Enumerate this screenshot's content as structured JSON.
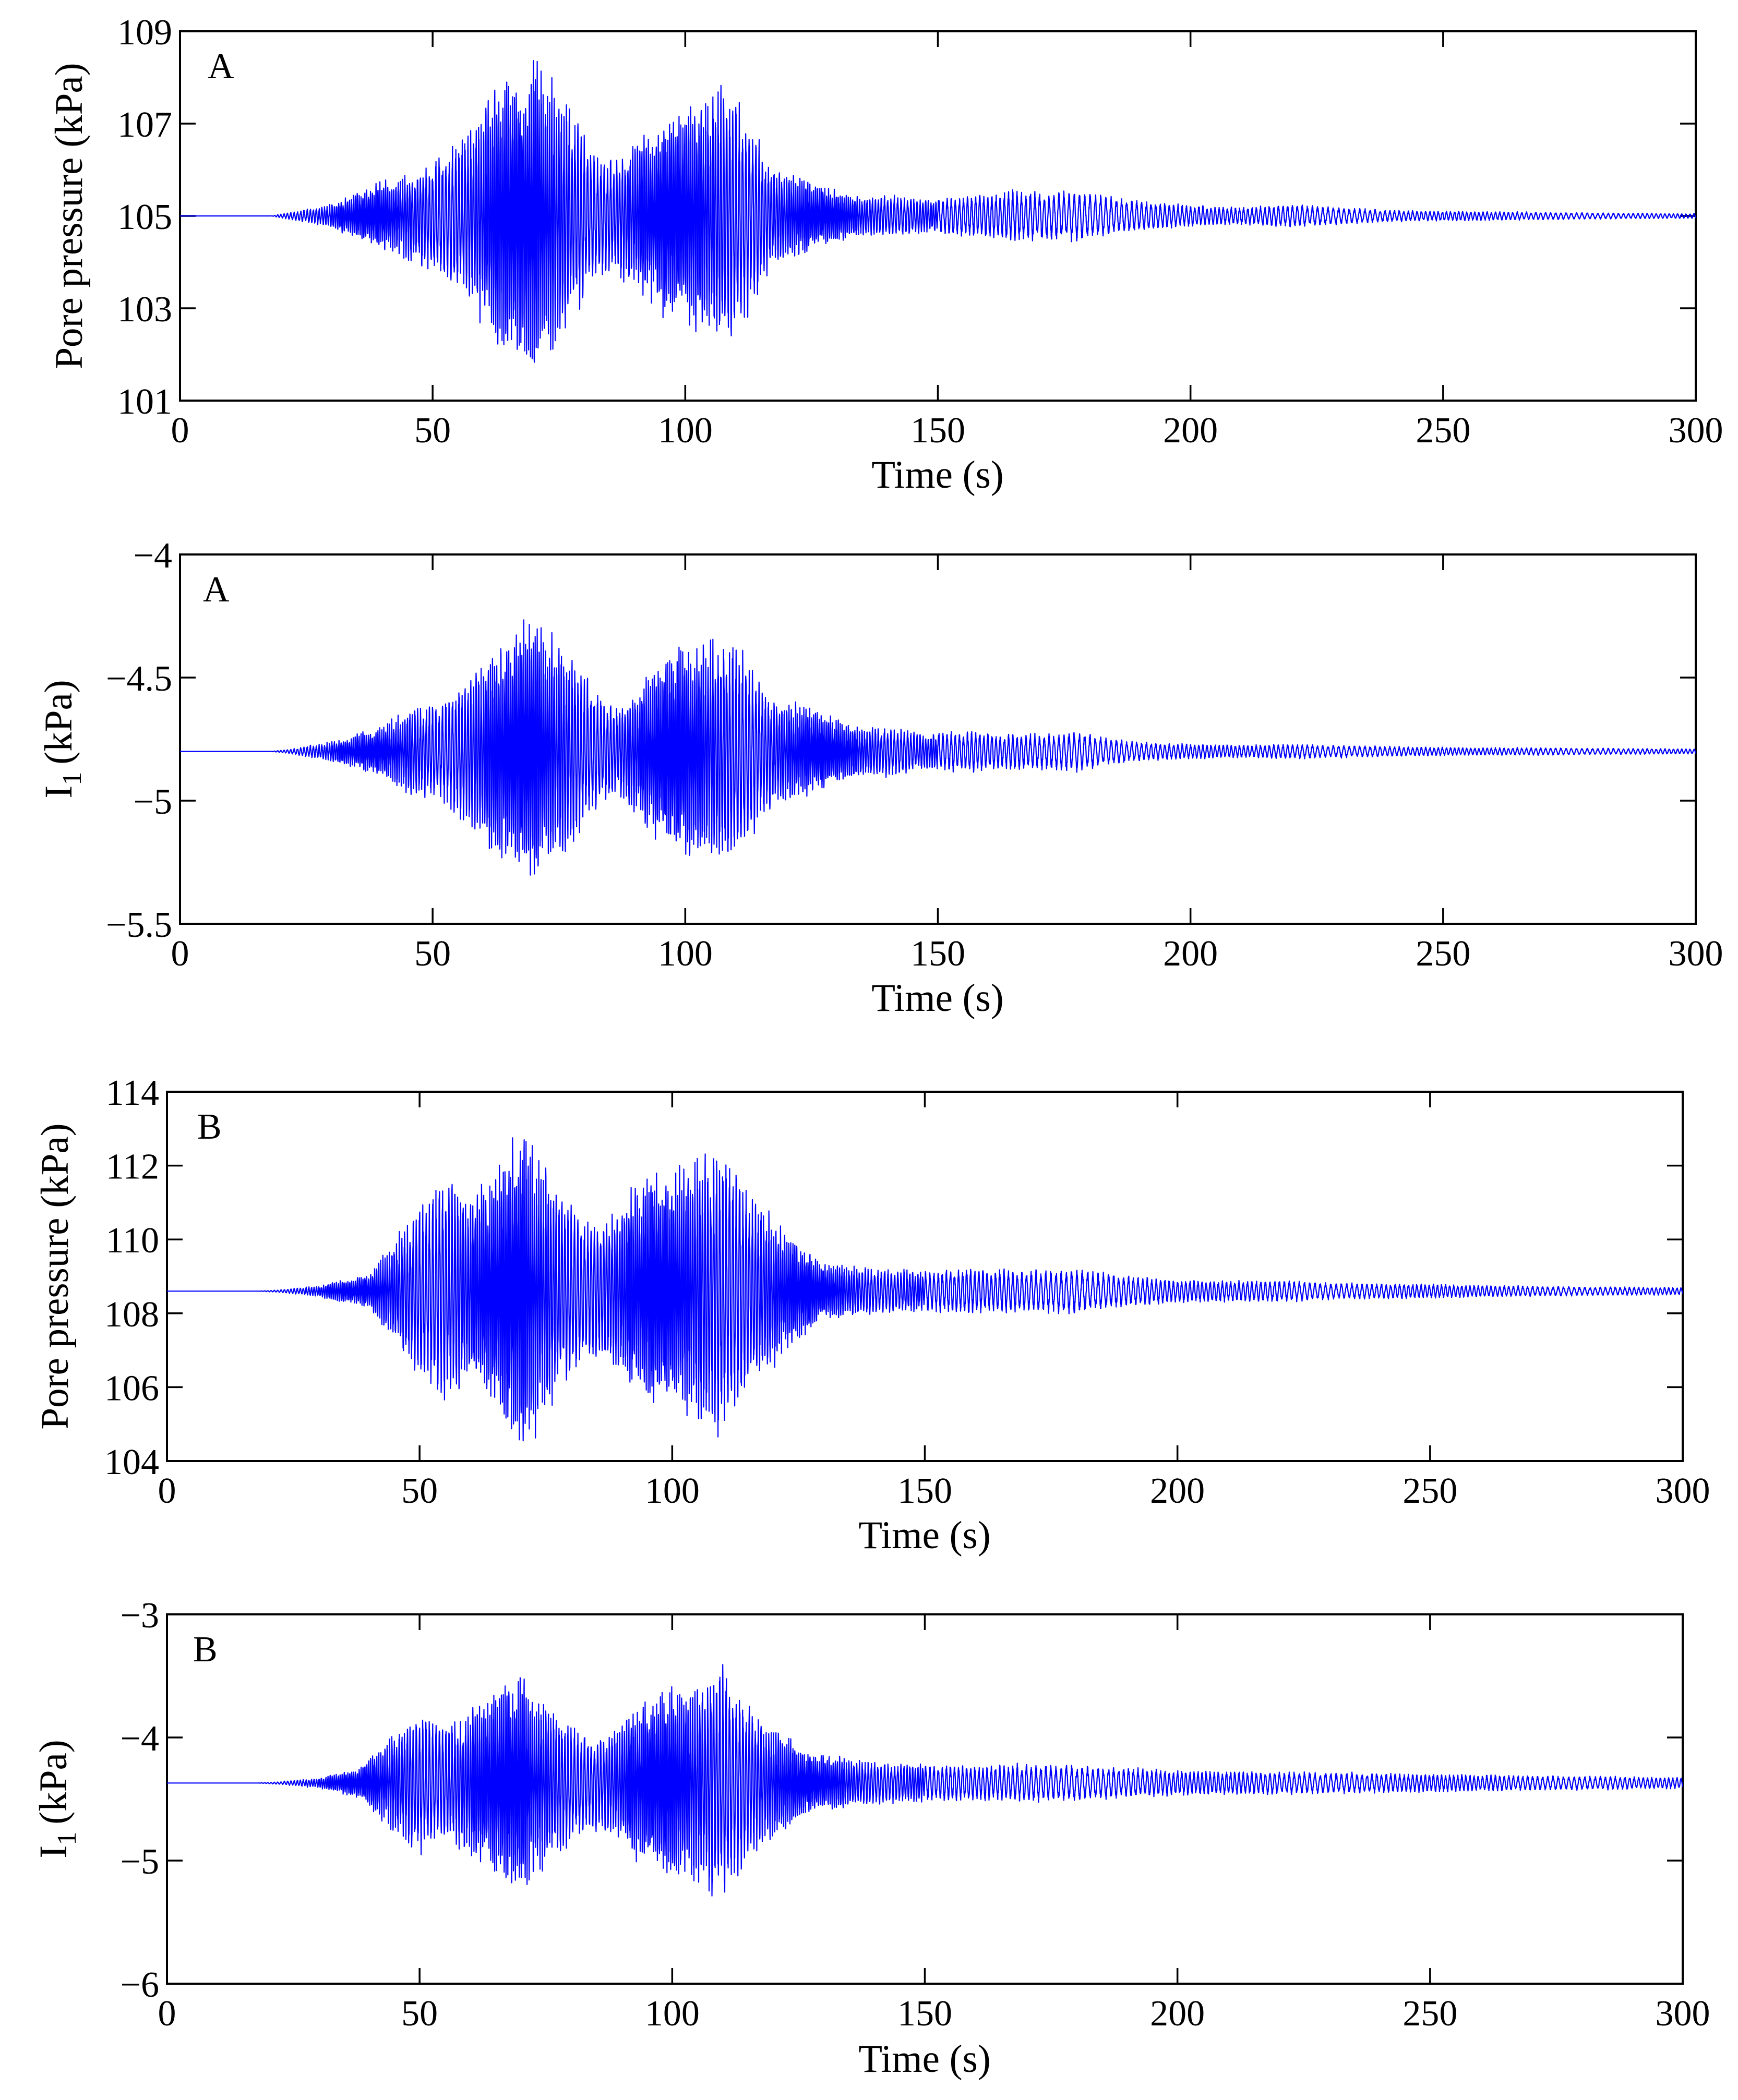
{
  "colors": {
    "trace": "#0000ff",
    "panel_letter": "#ff0000"
  },
  "chart_data": [
    {
      "type": "line",
      "panel_label": "A",
      "xlabel": "Time (s)",
      "ylabel": "Pore pressure (kPa)",
      "xlim": [
        0,
        300
      ],
      "ylim": [
        101,
        109
      ],
      "x_ticks": [
        "0",
        "50",
        "100",
        "150",
        "200",
        "250",
        "300"
      ],
      "y_ticks": [
        "101",
        "103",
        "105",
        "107",
        "109"
      ],
      "baseline": 105,
      "series": [
        {
          "name": "Pore pressure A",
          "seed": 11,
          "envelope": [
            [
              0,
              0
            ],
            [
              18,
              0
            ],
            [
              22,
              0.08
            ],
            [
              30,
              0.25
            ],
            [
              40,
              0.75
            ],
            [
              45,
              0.9
            ],
            [
              52,
              1.3
            ],
            [
              58,
              2.0
            ],
            [
              63,
              2.8
            ],
            [
              68,
              3.2
            ],
            [
              70,
              3.4
            ],
            [
              73,
              3.0
            ],
            [
              78,
              2.2
            ],
            [
              82,
              1.3
            ],
            [
              86,
              1.2
            ],
            [
              90,
              1.6
            ],
            [
              95,
              2.0
            ],
            [
              100,
              2.3
            ],
            [
              105,
              2.7
            ],
            [
              108,
              2.8
            ],
            [
              112,
              2.2
            ],
            [
              117,
              1.1
            ],
            [
              122,
              0.9
            ],
            [
              128,
              0.6
            ],
            [
              135,
              0.4
            ],
            [
              142,
              0.45
            ],
            [
              148,
              0.35
            ],
            [
              152,
              0.4
            ],
            [
              158,
              0.45
            ],
            [
              165,
              0.55
            ],
            [
              170,
              0.5
            ],
            [
              178,
              0.55
            ],
            [
              185,
              0.4
            ],
            [
              192,
              0.3
            ],
            [
              200,
              0.22
            ],
            [
              210,
              0.18
            ],
            [
              220,
              0.25
            ],
            [
              230,
              0.18
            ],
            [
              240,
              0.12
            ],
            [
              255,
              0.1
            ],
            [
              270,
              0.08
            ],
            [
              285,
              0.06
            ],
            [
              300,
              0.05
            ]
          ]
        }
      ]
    },
    {
      "type": "line",
      "panel_label": "A",
      "xlabel": "Time (s)",
      "ylabel_main": "I",
      "ylabel_sub": "1",
      "ylabel_unit": "(kPa)",
      "xlim": [
        0,
        300
      ],
      "ylim": [
        -5.5,
        -4
      ],
      "x_ticks": [
        "0",
        "50",
        "100",
        "150",
        "200",
        "250",
        "300"
      ],
      "y_ticks": [
        "−5.5",
        "−5",
        "−4.5",
        "−4"
      ],
      "y_tick_values": [
        -5.5,
        -5,
        -4.5,
        -4
      ],
      "baseline": -4.8,
      "series": [
        {
          "name": "I1 A",
          "seed": 23,
          "envelope": [
            [
              0,
              0
            ],
            [
              18,
              0
            ],
            [
              22,
              0.01
            ],
            [
              30,
              0.04
            ],
            [
              40,
              0.1
            ],
            [
              45,
              0.17
            ],
            [
              52,
              0.2
            ],
            [
              58,
              0.32
            ],
            [
              63,
              0.42
            ],
            [
              68,
              0.5
            ],
            [
              70,
              0.55
            ],
            [
              73,
              0.48
            ],
            [
              78,
              0.38
            ],
            [
              82,
              0.24
            ],
            [
              86,
              0.18
            ],
            [
              90,
              0.25
            ],
            [
              95,
              0.38
            ],
            [
              100,
              0.42
            ],
            [
              105,
              0.45
            ],
            [
              108,
              0.5
            ],
            [
              112,
              0.38
            ],
            [
              117,
              0.22
            ],
            [
              122,
              0.2
            ],
            [
              128,
              0.15
            ],
            [
              135,
              0.1
            ],
            [
              142,
              0.1
            ],
            [
              148,
              0.07
            ],
            [
              152,
              0.08
            ],
            [
              158,
              0.08
            ],
            [
              165,
              0.07
            ],
            [
              170,
              0.07
            ],
            [
              178,
              0.08
            ],
            [
              185,
              0.05
            ],
            [
              192,
              0.035
            ],
            [
              200,
              0.03
            ],
            [
              210,
              0.025
            ],
            [
              220,
              0.03
            ],
            [
              230,
              0.025
            ],
            [
              240,
              0.02
            ],
            [
              255,
              0.015
            ],
            [
              270,
              0.015
            ],
            [
              285,
              0.012
            ],
            [
              300,
              0.01
            ]
          ]
        }
      ]
    },
    {
      "type": "line",
      "panel_label": "B",
      "xlabel": "Time (s)",
      "ylabel": "Pore pressure (kPa)",
      "xlim": [
        0,
        300
      ],
      "ylim": [
        104,
        114
      ],
      "x_ticks": [
        "0",
        "50",
        "100",
        "150",
        "200",
        "250",
        "300"
      ],
      "y_ticks": [
        "104",
        "106",
        "108",
        "110",
        "112",
        "114"
      ],
      "baseline": 108.6,
      "series": [
        {
          "name": "Pore pressure B",
          "seed": 37,
          "envelope": [
            [
              0,
              0
            ],
            [
              18,
              0
            ],
            [
              22,
              0.03
            ],
            [
              30,
              0.15
            ],
            [
              40,
              0.45
            ],
            [
              45,
              1.4
            ],
            [
              50,
              2.3
            ],
            [
              55,
              3.1
            ],
            [
              60,
              2.5
            ],
            [
              65,
              3.2
            ],
            [
              70,
              4.5
            ],
            [
              73,
              3.8
            ],
            [
              78,
              2.6
            ],
            [
              82,
              2.0
            ],
            [
              86,
              1.8
            ],
            [
              90,
              2.4
            ],
            [
              95,
              3.1
            ],
            [
              100,
              3.2
            ],
            [
              105,
              3.6
            ],
            [
              110,
              3.9
            ],
            [
              115,
              2.7
            ],
            [
              120,
              2.0
            ],
            [
              125,
              1.3
            ],
            [
              130,
              0.8
            ],
            [
              140,
              0.6
            ],
            [
              150,
              0.55
            ],
            [
              160,
              0.6
            ],
            [
              170,
              0.55
            ],
            [
              180,
              0.6
            ],
            [
              190,
              0.4
            ],
            [
              200,
              0.3
            ],
            [
              210,
              0.28
            ],
            [
              220,
              0.3
            ],
            [
              230,
              0.22
            ],
            [
              245,
              0.2
            ],
            [
              260,
              0.16
            ],
            [
              280,
              0.12
            ],
            [
              300,
              0.1
            ]
          ]
        }
      ]
    },
    {
      "type": "line",
      "panel_label": "B",
      "xlabel": "Time (s)",
      "ylabel_main": "I",
      "ylabel_sub": "1",
      "ylabel_unit": "(kPa)",
      "xlim": [
        0,
        300
      ],
      "ylim": [
        -6,
        -3
      ],
      "x_ticks": [
        "0",
        "50",
        "100",
        "150",
        "200",
        "250",
        "300"
      ],
      "y_ticks": [
        "−6",
        "−5",
        "−4",
        "−3"
      ],
      "y_tick_values": [
        -6,
        -5,
        -4,
        -3
      ],
      "baseline": -4.37,
      "series": [
        {
          "name": "I1 B",
          "seed": 53,
          "envelope": [
            [
              0,
              0
            ],
            [
              18,
              0
            ],
            [
              22,
              0.01
            ],
            [
              30,
              0.04
            ],
            [
              38,
              0.12
            ],
            [
              42,
              0.3
            ],
            [
              46,
              0.45
            ],
            [
              50,
              0.55
            ],
            [
              55,
              0.45
            ],
            [
              60,
              0.6
            ],
            [
              65,
              0.75
            ],
            [
              70,
              0.9
            ],
            [
              73,
              0.75
            ],
            [
              78,
              0.55
            ],
            [
              82,
              0.42
            ],
            [
              86,
              0.35
            ],
            [
              90,
              0.5
            ],
            [
              95,
              0.68
            ],
            [
              100,
              0.78
            ],
            [
              105,
              0.8
            ],
            [
              110,
              1.0
            ],
            [
              115,
              0.6
            ],
            [
              120,
              0.45
            ],
            [
              125,
              0.3
            ],
            [
              130,
              0.22
            ],
            [
              140,
              0.17
            ],
            [
              150,
              0.15
            ],
            [
              160,
              0.14
            ],
            [
              170,
              0.15
            ],
            [
              180,
              0.14
            ],
            [
              190,
              0.12
            ],
            [
              200,
              0.1
            ],
            [
              220,
              0.09
            ],
            [
              240,
              0.08
            ],
            [
              260,
              0.065
            ],
            [
              280,
              0.055
            ],
            [
              300,
              0.045
            ]
          ]
        }
      ]
    }
  ]
}
